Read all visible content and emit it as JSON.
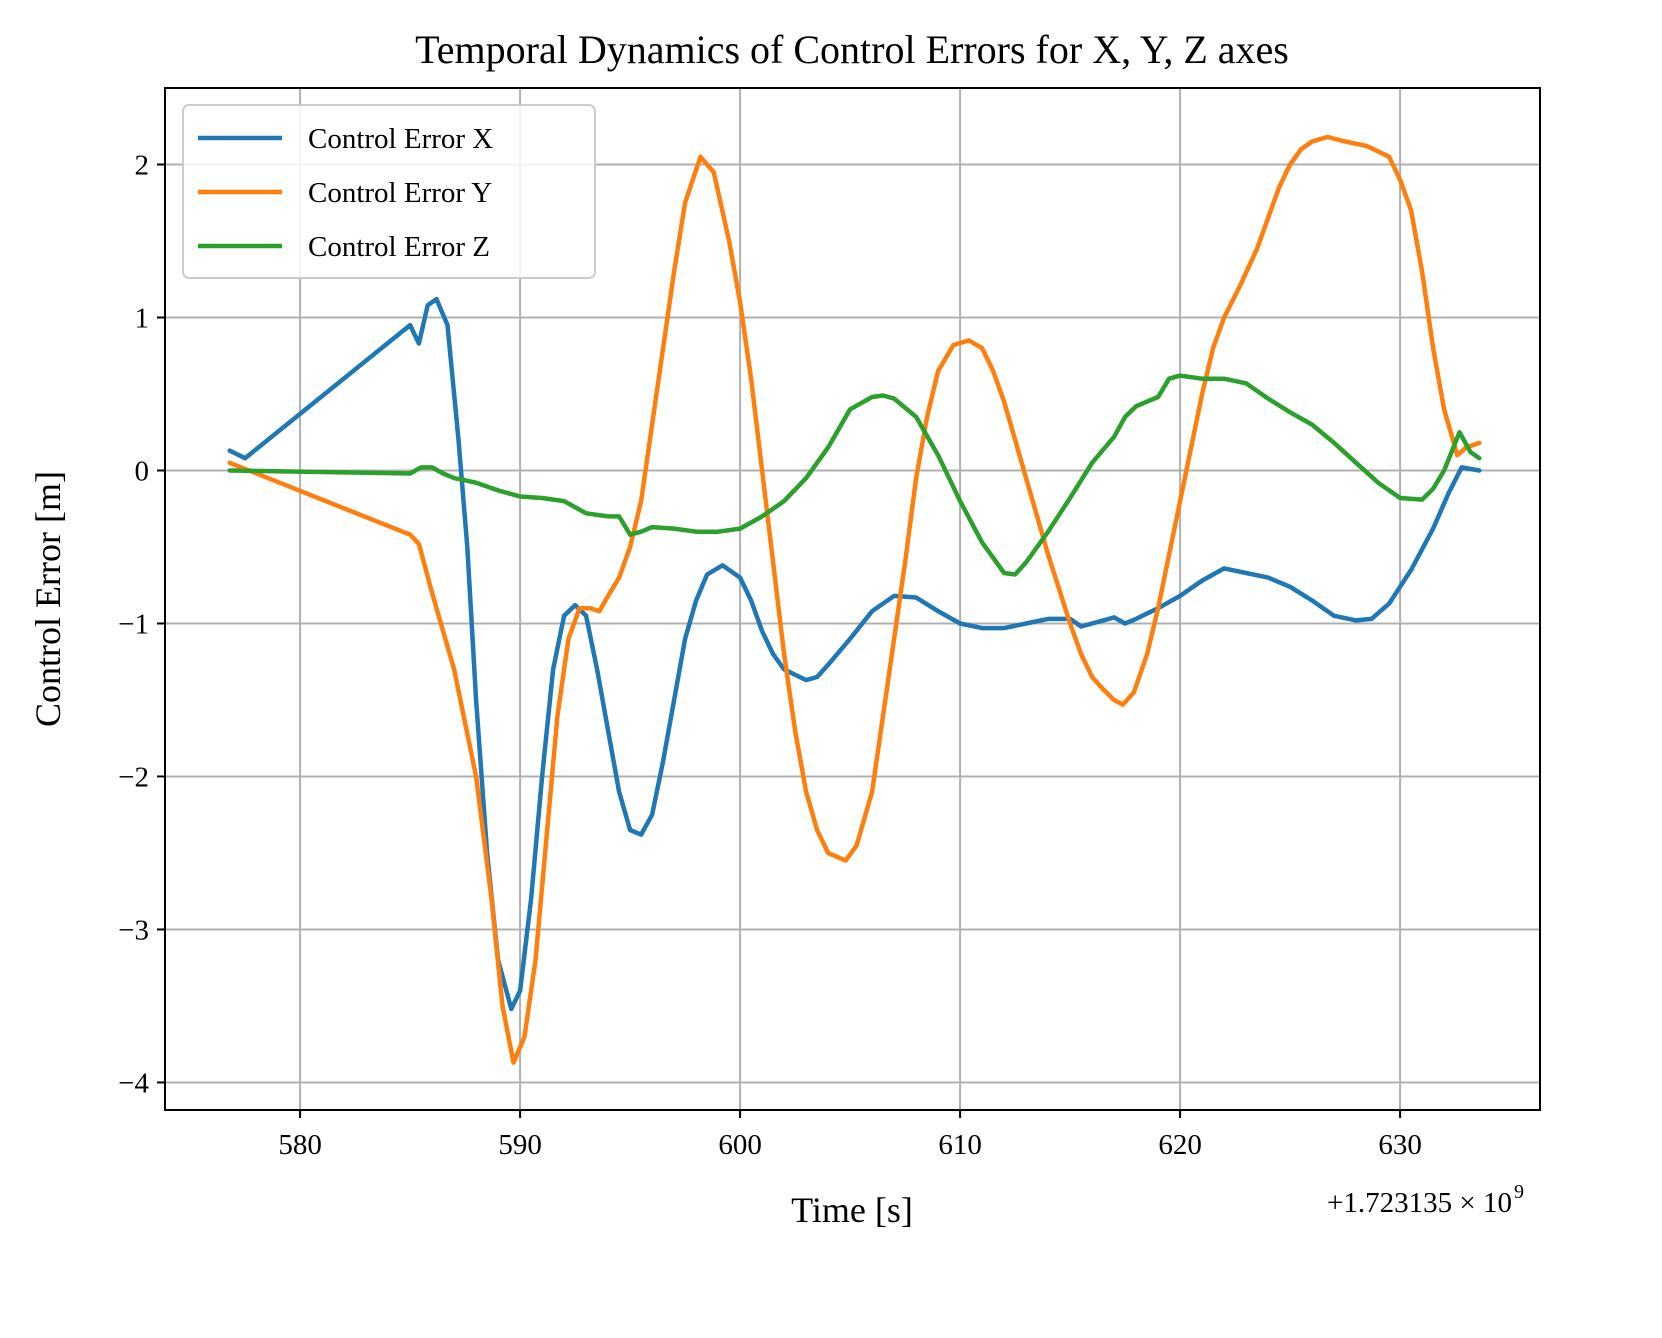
{
  "chart_data": {
    "type": "line",
    "title": "Temporal Dynamics of Control Errors for X, Y, Z axes",
    "xlabel": "Time [s]",
    "ylabel": "Control Error [m]",
    "x_offset_label": "+1.723135 × 10",
    "x_offset_exponent": "9",
    "xlim": [
      573.86,
      636.36
    ],
    "ylim": [
      -4.18,
      2.5
    ],
    "xticks": [
      580,
      590,
      600,
      610,
      620,
      630
    ],
    "yticks": [
      -4,
      -3,
      -2,
      -1,
      0,
      1,
      2
    ],
    "ytick_labels": [
      "−4",
      "−3",
      "−2",
      "−1",
      "0",
      "1",
      "2"
    ],
    "grid": true,
    "legend_placement": "top-left",
    "series": [
      {
        "name": "Control Error X",
        "color": "#1f77b4",
        "points": [
          [
            576.8,
            0.13
          ],
          [
            577.5,
            0.08
          ],
          [
            585,
            0.95
          ],
          [
            585.4,
            0.83
          ],
          [
            585.8,
            1.08
          ],
          [
            586.2,
            1.12
          ],
          [
            586.7,
            0.95
          ],
          [
            587.2,
            0.2
          ],
          [
            587.6,
            -0.5
          ],
          [
            588,
            -1.5
          ],
          [
            588.5,
            -2.5
          ],
          [
            589,
            -3.2
          ],
          [
            589.6,
            -3.52
          ],
          [
            590,
            -3.4
          ],
          [
            590.5,
            -2.8
          ],
          [
            591,
            -2.0
          ],
          [
            591.5,
            -1.3
          ],
          [
            592,
            -0.95
          ],
          [
            592.5,
            -0.88
          ],
          [
            593,
            -0.95
          ],
          [
            593.5,
            -1.3
          ],
          [
            594,
            -1.7
          ],
          [
            594.5,
            -2.1
          ],
          [
            595,
            -2.35
          ],
          [
            595.5,
            -2.38
          ],
          [
            596,
            -2.25
          ],
          [
            596.5,
            -1.9
          ],
          [
            597,
            -1.5
          ],
          [
            597.5,
            -1.1
          ],
          [
            598,
            -0.85
          ],
          [
            598.5,
            -0.68
          ],
          [
            599.2,
            -0.62
          ],
          [
            600,
            -0.7
          ],
          [
            600.5,
            -0.85
          ],
          [
            601,
            -1.05
          ],
          [
            601.5,
            -1.2
          ],
          [
            602,
            -1.3
          ],
          [
            603,
            -1.37
          ],
          [
            603.5,
            -1.35
          ],
          [
            604,
            -1.27
          ],
          [
            605,
            -1.1
          ],
          [
            606,
            -0.92
          ],
          [
            607,
            -0.82
          ],
          [
            608,
            -0.83
          ],
          [
            609,
            -0.92
          ],
          [
            610,
            -1.0
          ],
          [
            611,
            -1.03
          ],
          [
            612,
            -1.03
          ],
          [
            613,
            -1.0
          ],
          [
            614,
            -0.97
          ],
          [
            615,
            -0.97
          ],
          [
            615.5,
            -1.02
          ],
          [
            616.5,
            -0.98
          ],
          [
            617,
            -0.96
          ],
          [
            617.5,
            -1.0
          ],
          [
            618,
            -0.97
          ],
          [
            619,
            -0.9
          ],
          [
            620,
            -0.82
          ],
          [
            621,
            -0.72
          ],
          [
            622,
            -0.64
          ],
          [
            623,
            -0.67
          ],
          [
            624,
            -0.7
          ],
          [
            625,
            -0.76
          ],
          [
            626,
            -0.85
          ],
          [
            627,
            -0.95
          ],
          [
            628,
            -0.98
          ],
          [
            628.7,
            -0.97
          ],
          [
            629.5,
            -0.87
          ],
          [
            630.5,
            -0.65
          ],
          [
            631.5,
            -0.38
          ],
          [
            632.2,
            -0.15
          ],
          [
            632.8,
            0.02
          ],
          [
            633.6,
            0.0
          ]
        ]
      },
      {
        "name": "Control Error Y",
        "color": "#ff7f0e",
        "points": [
          [
            576.8,
            0.05
          ],
          [
            585,
            -0.42
          ],
          [
            585.4,
            -0.48
          ],
          [
            586,
            -0.8
          ],
          [
            587,
            -1.3
          ],
          [
            588,
            -2.0
          ],
          [
            588.7,
            -2.8
          ],
          [
            589.2,
            -3.5
          ],
          [
            589.7,
            -3.87
          ],
          [
            590.2,
            -3.7
          ],
          [
            590.7,
            -3.2
          ],
          [
            591.2,
            -2.4
          ],
          [
            591.7,
            -1.6
          ],
          [
            592.2,
            -1.1
          ],
          [
            592.7,
            -0.9
          ],
          [
            593.2,
            -0.9
          ],
          [
            593.6,
            -0.92
          ],
          [
            594,
            -0.82
          ],
          [
            594.5,
            -0.7
          ],
          [
            595,
            -0.5
          ],
          [
            595.5,
            -0.2
          ],
          [
            596,
            0.3
          ],
          [
            596.5,
            0.8
          ],
          [
            597,
            1.3
          ],
          [
            597.5,
            1.75
          ],
          [
            598.2,
            2.05
          ],
          [
            598.8,
            1.95
          ],
          [
            599.5,
            1.5
          ],
          [
            600,
            1.1
          ],
          [
            600.5,
            0.6
          ],
          [
            601,
            0.0
          ],
          [
            601.5,
            -0.6
          ],
          [
            602,
            -1.2
          ],
          [
            602.5,
            -1.7
          ],
          [
            603,
            -2.1
          ],
          [
            603.5,
            -2.35
          ],
          [
            604,
            -2.5
          ],
          [
            604.8,
            -2.55
          ],
          [
            605.3,
            -2.45
          ],
          [
            606,
            -2.1
          ],
          [
            606.5,
            -1.6
          ],
          [
            607,
            -1.1
          ],
          [
            607.5,
            -0.6
          ],
          [
            608,
            -0.05
          ],
          [
            608.5,
            0.35
          ],
          [
            609,
            0.65
          ],
          [
            609.7,
            0.82
          ],
          [
            610.4,
            0.85
          ],
          [
            611,
            0.8
          ],
          [
            611.5,
            0.65
          ],
          [
            612,
            0.45
          ],
          [
            612.5,
            0.2
          ],
          [
            613,
            -0.05
          ],
          [
            614,
            -0.55
          ],
          [
            615,
            -1.0
          ],
          [
            615.5,
            -1.2
          ],
          [
            616,
            -1.35
          ],
          [
            616.5,
            -1.43
          ],
          [
            617,
            -1.5
          ],
          [
            617.4,
            -1.53
          ],
          [
            617.9,
            -1.45
          ],
          [
            618.5,
            -1.2
          ],
          [
            619,
            -0.9
          ],
          [
            619.5,
            -0.55
          ],
          [
            620,
            -0.2
          ],
          [
            620.5,
            0.15
          ],
          [
            621,
            0.5
          ],
          [
            621.5,
            0.8
          ],
          [
            622,
            1.0
          ],
          [
            622.7,
            1.2
          ],
          [
            623.5,
            1.45
          ],
          [
            624,
            1.65
          ],
          [
            624.5,
            1.85
          ],
          [
            625,
            2.0
          ],
          [
            625.5,
            2.1
          ],
          [
            626,
            2.15
          ],
          [
            626.7,
            2.18
          ],
          [
            627.5,
            2.15
          ],
          [
            628.5,
            2.12
          ],
          [
            629.5,
            2.05
          ],
          [
            630,
            1.9
          ],
          [
            630.5,
            1.7
          ],
          [
            631,
            1.3
          ],
          [
            631.5,
            0.8
          ],
          [
            632,
            0.4
          ],
          [
            632.6,
            0.1
          ],
          [
            633,
            0.15
          ],
          [
            633.6,
            0.18
          ]
        ]
      },
      {
        "name": "Control Error Z",
        "color": "#2ca02c",
        "points": [
          [
            576.8,
            0
          ],
          [
            585,
            -0.02
          ],
          [
            585.5,
            0.02
          ],
          [
            586,
            0.02
          ],
          [
            586.5,
            -0.02
          ],
          [
            587,
            -0.05
          ],
          [
            588,
            -0.08
          ],
          [
            589,
            -0.13
          ],
          [
            590,
            -0.17
          ],
          [
            591,
            -0.18
          ],
          [
            592,
            -0.2
          ],
          [
            593,
            -0.28
          ],
          [
            594,
            -0.3
          ],
          [
            594.5,
            -0.3
          ],
          [
            595,
            -0.42
          ],
          [
            595.5,
            -0.4
          ],
          [
            596,
            -0.37
          ],
          [
            597,
            -0.38
          ],
          [
            598,
            -0.4
          ],
          [
            599,
            -0.4
          ],
          [
            600,
            -0.38
          ],
          [
            601,
            -0.3
          ],
          [
            602,
            -0.2
          ],
          [
            603,
            -0.05
          ],
          [
            604,
            0.15
          ],
          [
            605,
            0.4
          ],
          [
            606,
            0.48
          ],
          [
            606.5,
            0.49
          ],
          [
            607,
            0.47
          ],
          [
            608,
            0.35
          ],
          [
            609,
            0.1
          ],
          [
            610,
            -0.2
          ],
          [
            611,
            -0.47
          ],
          [
            612,
            -0.67
          ],
          [
            612.5,
            -0.68
          ],
          [
            613,
            -0.6
          ],
          [
            614,
            -0.4
          ],
          [
            615,
            -0.18
          ],
          [
            616,
            0.05
          ],
          [
            617,
            0.22
          ],
          [
            617.5,
            0.35
          ],
          [
            618,
            0.42
          ],
          [
            619,
            0.48
          ],
          [
            619.5,
            0.6
          ],
          [
            620,
            0.62
          ],
          [
            621,
            0.6
          ],
          [
            622,
            0.6
          ],
          [
            623,
            0.57
          ],
          [
            624,
            0.47
          ],
          [
            625,
            0.38
          ],
          [
            626,
            0.3
          ],
          [
            627,
            0.18
          ],
          [
            628,
            0.05
          ],
          [
            629,
            -0.08
          ],
          [
            630,
            -0.18
          ],
          [
            631,
            -0.19
          ],
          [
            631.5,
            -0.12
          ],
          [
            632,
            0.0
          ],
          [
            632.7,
            0.25
          ],
          [
            633.2,
            0.12
          ],
          [
            633.6,
            0.08
          ]
        ]
      }
    ]
  }
}
